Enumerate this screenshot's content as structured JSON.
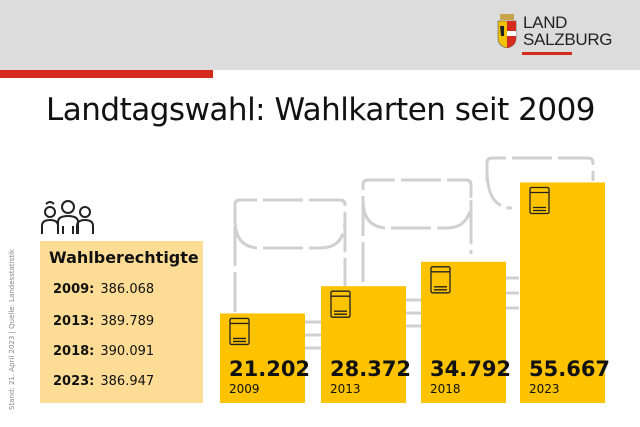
{
  "header": {
    "logo_line1": "LAND",
    "logo_line2": "SALZBURG"
  },
  "title": "Landtagswahl: Wahlkarten seit 2009",
  "source_note": "Stand: 21. April 2023 | Quelle: Landesstatistik",
  "eligible": {
    "heading": "Wahlberechtigte",
    "rows": [
      {
        "year": "2009:",
        "value": "386.068"
      },
      {
        "year": "2013:",
        "value": "389.789"
      },
      {
        "year": "2018:",
        "value": "390.091"
      },
      {
        "year": "2023:",
        "value": "386.947"
      }
    ]
  },
  "colors": {
    "bar": "#fdc300",
    "box": "#fddc95",
    "accent": "#d52b1e",
    "header": "#dcdcdc"
  },
  "chart_data": {
    "type": "bar",
    "categories": [
      "2009",
      "2013",
      "2018",
      "2023"
    ],
    "values": [
      21202,
      28372,
      34792,
      55667
    ],
    "value_labels": [
      "21.202",
      "28.372",
      "34.792",
      "55.667"
    ],
    "title": "Landtagswahl: Wahlkarten seit 2009",
    "grid": false
  }
}
